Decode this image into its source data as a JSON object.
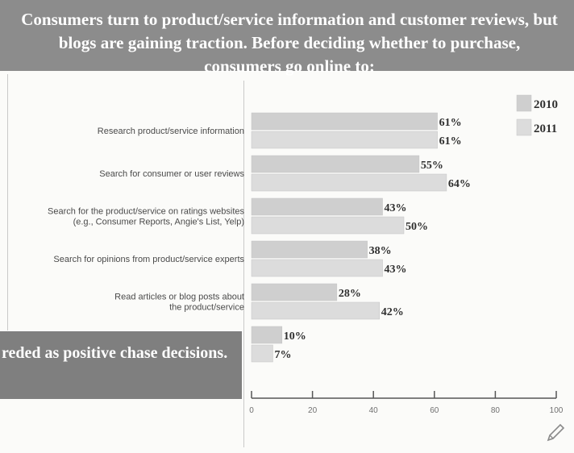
{
  "banner": {
    "text": "Consumers turn to product/service information and customer reviews, but blogs are gaining traction. Before deciding whether to purchase, consumers go online to:"
  },
  "side_box": {
    "text": "reded as positive chase decisions."
  },
  "colors": {
    "bar_2010": "#cfcfcf",
    "bar_2011": "#dcdcdc",
    "banner": "#8c8c8c",
    "side_box": "#7f7f7f"
  },
  "chart_data": {
    "type": "bar",
    "orientation": "horizontal",
    "title": "",
    "xlabel": "",
    "ylabel": "",
    "xlim": [
      0,
      100
    ],
    "ticks": [
      "0",
      "20",
      "40",
      "60",
      "80",
      "100"
    ],
    "legend_position": "top-right",
    "grid": false,
    "categories": [
      [
        "Research product/service information"
      ],
      [
        "Search for consumer or user reviews"
      ],
      [
        "Search for the product/service on ratings websites",
        "(e.g., Consumer Reports, Angie's List, Yelp)"
      ],
      [
        "Search for opinions from product/service experts"
      ],
      [
        "Read articles or blog posts about",
        "the product/service"
      ],
      [
        ""
      ]
    ],
    "series": [
      {
        "name": "2010",
        "values": [
          61,
          55,
          43,
          38,
          28,
          10
        ],
        "labels": [
          "61%",
          "55%",
          "43%",
          "38%",
          "28%",
          "10%"
        ]
      },
      {
        "name": "2011",
        "values": [
          61,
          64,
          50,
          43,
          42,
          7
        ],
        "labels": [
          "61%",
          "64%",
          "50%",
          "43%",
          "42%",
          "7%"
        ]
      }
    ]
  }
}
